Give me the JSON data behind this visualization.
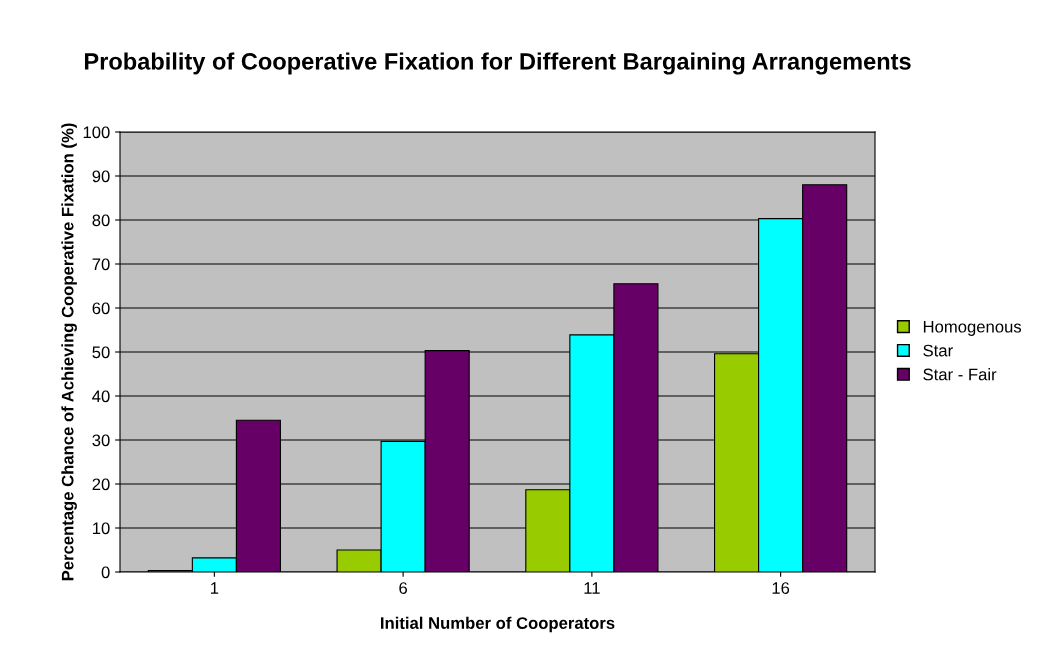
{
  "chart_data": {
    "type": "bar",
    "title": "Probability of Cooperative Fixation for Different Bargaining Arrangements",
    "xlabel": "Initial Number of Cooperators",
    "ylabel": "Percentage Chance of Achieving Cooperative Fixation (%)",
    "categories": [
      "1",
      "6",
      "11",
      "16"
    ],
    "series": [
      {
        "name": "Homogenous",
        "color": "#99cc00",
        "values": [
          0.3,
          5,
          18.7,
          49.6
        ]
      },
      {
        "name": "Star",
        "color": "#00ffff",
        "values": [
          3.2,
          29.7,
          53.9,
          80.3
        ]
      },
      {
        "name": "Star - Fair",
        "color": "#660066",
        "values": [
          34.5,
          50.3,
          65.5,
          88
        ]
      }
    ],
    "ylim": [
      0,
      100
    ],
    "yticks": [
      0,
      10,
      20,
      30,
      40,
      50,
      60,
      70,
      80,
      90,
      100
    ],
    "grid": "y",
    "legend": "right"
  }
}
